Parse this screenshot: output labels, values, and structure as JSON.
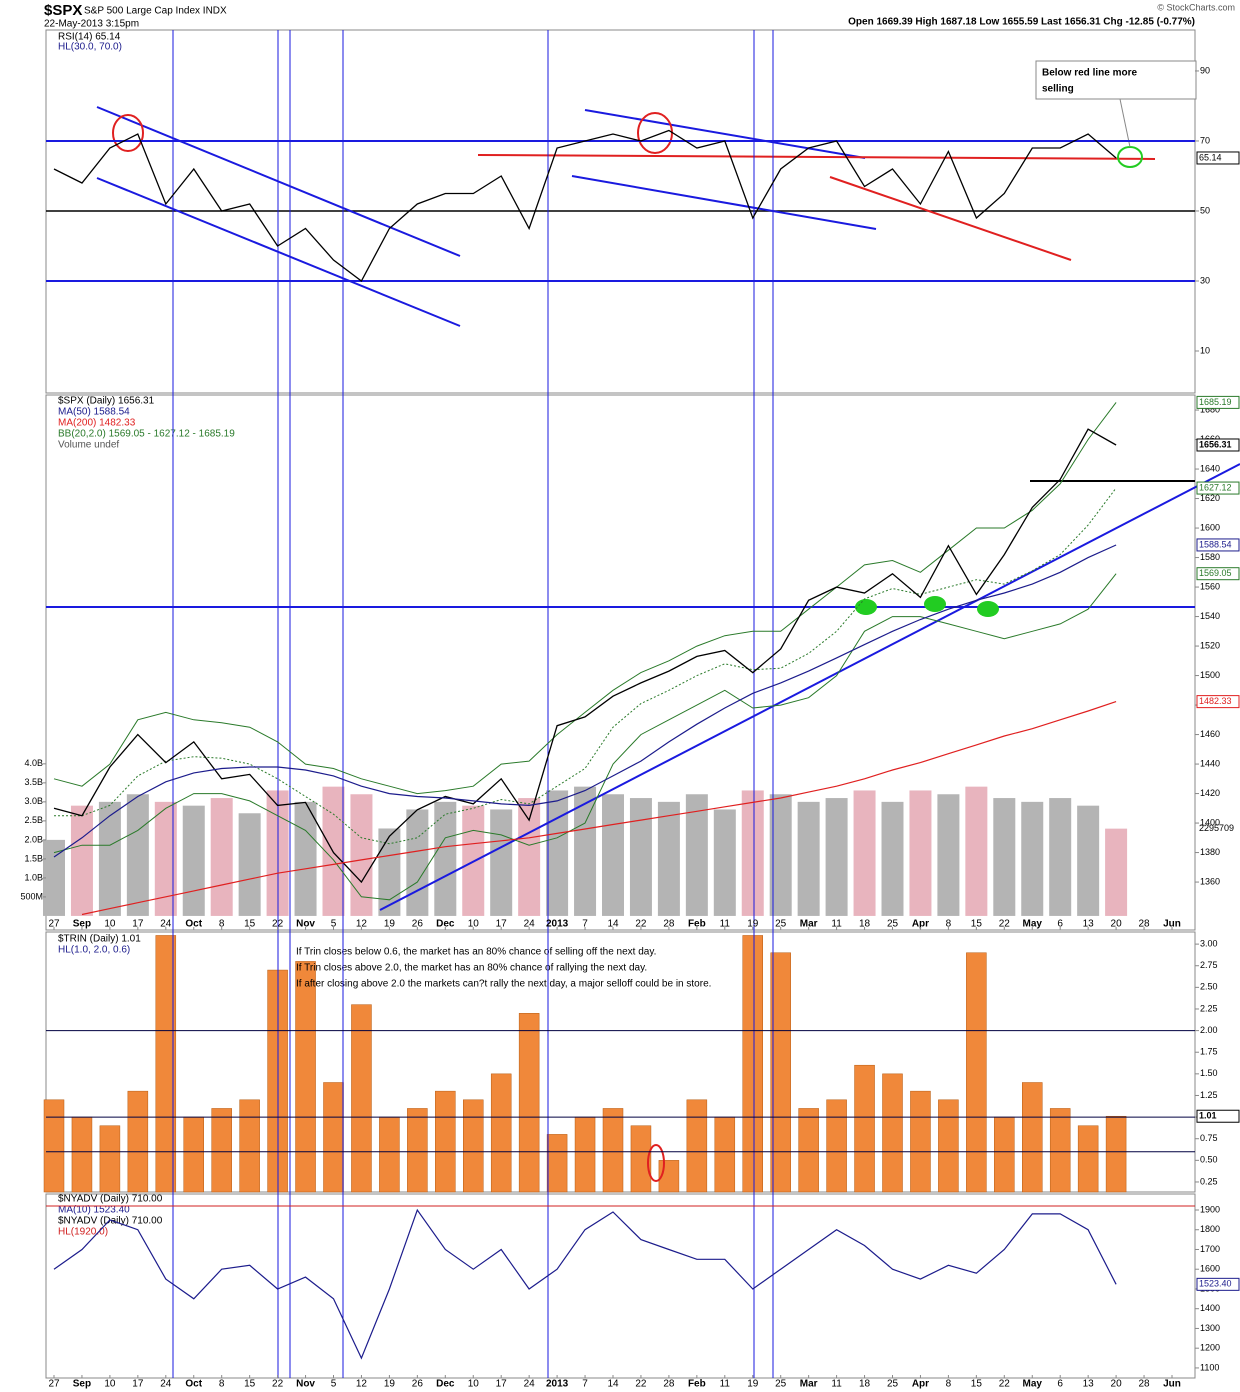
{
  "header": {
    "symbol": "$SPX",
    "name": "S&P 500 Large Cap Index INDX",
    "date": "22-May-2013 3:15pm",
    "quote": "Open 1669.39 High 1687.18 Low 1655.59 Last 1656.31 Chg -12.85 (-0.77%)",
    "credit": "© StockCharts.com"
  },
  "chart_data": [
    {
      "type": "line",
      "title": "RSI(14) 65.14",
      "hline_label": "HL(30.0, 70.0)",
      "hlines": [
        30,
        70
      ],
      "hline_color": "#1a1adf",
      "ylim": [
        -2,
        101.7
      ],
      "yticks": [
        10,
        30,
        50,
        70,
        90
      ],
      "annotation": [
        "Below red line more",
        "selling"
      ],
      "series": [
        {
          "color": "#000000",
          "values": [
            62,
            58,
            68,
            72,
            52,
            62,
            50,
            52,
            40,
            45,
            36,
            30,
            45,
            52,
            55,
            55,
            60,
            45,
            68,
            70,
            72,
            70,
            73,
            68,
            70,
            48,
            62,
            68,
            70,
            57,
            62,
            52,
            67,
            48,
            55,
            68,
            68,
            72,
            65.14,
            null,
            null
          ]
        }
      ]
    },
    {
      "type": "line",
      "ylim": [
        1327.5,
        1690.2
      ],
      "yticks": [
        1360,
        1380,
        1400,
        1420,
        1440,
        1460,
        1480,
        1500,
        1520,
        1540,
        1560,
        1580,
        1600,
        1620,
        1640,
        1660,
        1680
      ],
      "y2lim": [
        -0.37,
        13.7
      ],
      "y2ticks": [
        {
          "value": 0.5,
          "label": "500M"
        },
        {
          "value": 1,
          "label": "1.0B"
        },
        {
          "value": 1.5,
          "label": "1.5B"
        },
        {
          "value": 2,
          "label": "2.0B"
        },
        {
          "value": 2.5,
          "label": "2.5B"
        },
        {
          "value": 3,
          "label": "3.0B"
        },
        {
          "value": 3.5,
          "label": "3.5B"
        },
        {
          "value": 4,
          "label": "4.0B"
        }
      ],
      "categories": [
        "27",
        "Sep",
        "10",
        "17",
        "24",
        "Oct",
        "8",
        "15",
        "22",
        "Nov",
        "5",
        "12",
        "19",
        "26",
        "Dec",
        "10",
        "17",
        "24",
        "2013",
        "7",
        "14",
        "22",
        "28",
        "Feb",
        "11",
        "19",
        "25",
        "Mar",
        "11",
        "18",
        "25",
        "Apr",
        "8",
        "15",
        "22",
        "May",
        "6",
        "13",
        "20",
        "28",
        "Jun"
      ],
      "series": [
        {
          "name": "$SPX (Daily) 1656.31",
          "color": "#000000",
          "values": [
            1410,
            1405,
            1438,
            1460,
            1441,
            1455,
            1430,
            1433,
            1412,
            1414,
            1380,
            1360,
            1391,
            1409,
            1418,
            1413,
            1430,
            1402,
            1466,
            1472,
            1486,
            1495,
            1503,
            1513,
            1517,
            1502,
            1518,
            1551,
            1560,
            1556,
            1569,
            1553,
            1588,
            1555,
            1582,
            1614,
            1633,
            1667,
            1656.31,
            null,
            null
          ]
        },
        {
          "name": "MA(50) 1588.54",
          "color": "#1c1c8c",
          "values": [
            1377,
            1390,
            1405,
            1418,
            1428,
            1434,
            1437,
            1438,
            1438,
            1436,
            1432,
            1425,
            1420,
            1418,
            1417,
            1415,
            1413,
            1412,
            1415,
            1422,
            1432,
            1442,
            1455,
            1467,
            1478,
            1488,
            1495,
            1503,
            1512,
            1521,
            1530,
            1538,
            1545,
            1551,
            1556,
            1562,
            1570,
            1580,
            1588.54,
            null,
            null
          ]
        },
        {
          "name": "MA(200) 1482.33",
          "color": "#e02020",
          "values": [
            null,
            1338,
            1342,
            1346,
            1350,
            1354,
            1358,
            1362,
            1366,
            1369,
            1372,
            1375,
            1378,
            1381,
            1384,
            1386,
            1388,
            1390,
            1393,
            1396,
            1399,
            1402,
            1405,
            1408,
            1411,
            1414,
            1417,
            1421,
            1425,
            1430,
            1436,
            1441,
            1447,
            1453,
            1459,
            1464,
            1470,
            1476,
            1482.33,
            null,
            null
          ]
        },
        {
          "name": "Volume undef",
          "type": "bar",
          "axis": "y2",
          "up_color": "#b4b4b4",
          "down_color": "#e8b4be",
          "end_label": "2295709",
          "values": [
            2.0,
            2.9,
            3.0,
            3.2,
            3.0,
            2.9,
            3.1,
            2.7,
            3.3,
            3.0,
            3.4,
            3.2,
            2.3,
            2.8,
            3.0,
            2.9,
            2.8,
            3.1,
            3.3,
            3.4,
            3.2,
            3.1,
            3.0,
            3.2,
            2.8,
            3.3,
            3.2,
            3.0,
            3.1,
            3.3,
            3.0,
            3.3,
            3.2,
            3.4,
            3.1,
            3.0,
            3.1,
            2.9,
            2.295709,
            null,
            null
          ]
        }
      ],
      "bands": {
        "name": "BB(20,2.0) 1569.05 - 1627.12 - 1685.19",
        "color": "#2a7a2a",
        "upper": [
          1430,
          1425,
          1440,
          1470,
          1475,
          1470,
          1468,
          1465,
          1455,
          1440,
          1437,
          1430,
          1425,
          1420,
          1422,
          1425,
          1440,
          1442,
          1460,
          1475,
          1490,
          1502,
          1510,
          1520,
          1527,
          1530,
          1530,
          1545,
          1560,
          1575,
          1578,
          1570,
          1585,
          1600,
          1600,
          1612,
          1630,
          1660,
          1685.19,
          null,
          null
        ],
        "middle": [
          1405,
          1405,
          1412,
          1432,
          1442,
          1445,
          1444,
          1440,
          1430,
          1418,
          1406,
          1390,
          1386,
          1390,
          1406,
          1410,
          1416,
          1413,
          1425,
          1437,
          1465,
          1481,
          1490,
          1500,
          1508,
          1504,
          1505,
          1515,
          1530,
          1552,
          1559,
          1555,
          1560,
          1565,
          1562,
          1571,
          1582,
          1602,
          1627.12,
          null,
          null
        ],
        "lower": [
          1380,
          1385,
          1385,
          1395,
          1410,
          1420,
          1420,
          1415,
          1405,
          1395,
          1375,
          1350,
          1348,
          1360,
          1390,
          1395,
          1392,
          1385,
          1390,
          1400,
          1440,
          1460,
          1470,
          1480,
          1490,
          1478,
          1480,
          1485,
          1500,
          1530,
          1540,
          1540,
          1535,
          1530,
          1525,
          1530,
          1535,
          1545,
          1569.05,
          null,
          null
        ]
      }
    },
    {
      "type": "bar",
      "title": "$TRIN (Daily) 1.01",
      "hline_label": "HL(1.0, 2.0, 0.6)",
      "hlines": [
        1,
        2,
        0.6
      ],
      "hline_color": "#000040",
      "ylim": [
        0.134,
        3.14
      ],
      "yticks": [
        0.25,
        {
          "value": 0.5,
          "label": "0.50"
        },
        0.75,
        {
          "value": 1,
          "label": "1.00"
        },
        1.25,
        {
          "value": 1.5,
          "label": "1.50"
        },
        1.75,
        {
          "value": 2,
          "label": "2.00"
        },
        2.25,
        {
          "value": 2.5,
          "label": "2.50"
        },
        2.75,
        {
          "value": 3,
          "label": "3.00"
        }
      ],
      "annotation": [
        "If Trin closes below 0.6, the market has an 80% chance of selling off the next day.",
        "If Trin closes above 2.0, the market has an 80% chance of rallying the next day.",
        "If after closing above 2.0 the markets can?t rally the next day, a major selloff could be in store."
      ],
      "series": [
        {
          "color": "#f0883a",
          "values": [
            1.2,
            1.0,
            0.9,
            1.3,
            3.1,
            1.0,
            1.1,
            1.2,
            2.7,
            2.8,
            1.4,
            2.3,
            1.0,
            1.1,
            1.3,
            1.2,
            1.5,
            2.2,
            0.8,
            1.0,
            1.1,
            0.9,
            0.5,
            1.2,
            1.0,
            3.1,
            2.9,
            1.1,
            1.2,
            1.6,
            1.5,
            1.3,
            1.2,
            2.9,
            1.0,
            1.4,
            1.1,
            0.9,
            1.01,
            null,
            null
          ]
        }
      ]
    },
    {
      "type": "line",
      "title": "$NYADV (Daily) 710.00",
      "legend_extra": "$NYADV (Daily) 710.00",
      "hline_label": "HL(1920.0)",
      "hlines": [
        1920
      ],
      "hline_color": "#d02020",
      "ylim": [
        1049,
        1981
      ],
      "yticks": [
        1100,
        1200,
        1300,
        1400,
        1500,
        1600,
        1700,
        1800,
        1900
      ],
      "categories": [
        "27",
        "Sep",
        "10",
        "17",
        "24",
        "Oct",
        "8",
        "15",
        "22",
        "Nov",
        "5",
        "12",
        "19",
        "26",
        "Dec",
        "10",
        "17",
        "24",
        "2013",
        "7",
        "14",
        "22",
        "28",
        "Feb",
        "11",
        "19",
        "25",
        "Mar",
        "11",
        "18",
        "25",
        "Apr",
        "8",
        "15",
        "22",
        "May",
        "6",
        "13",
        "20",
        "28",
        "Jun"
      ],
      "series": [
        {
          "name": "MA(10) 1523.40",
          "color": "#1c1c8c",
          "end_label": "1523.40",
          "values": [
            1600,
            1700,
            1850,
            1800,
            1550,
            1450,
            1600,
            1620,
            1500,
            1560,
            1450,
            1150,
            1500,
            1900,
            1700,
            1600,
            1700,
            1500,
            1600,
            1800,
            1890,
            1750,
            1700,
            1650,
            1650,
            1500,
            1600,
            1700,
            1800,
            1720,
            1600,
            1550,
            1620,
            1580,
            1700,
            1880,
            1880,
            1800,
            1523.4,
            null,
            null
          ]
        }
      ]
    }
  ]
}
